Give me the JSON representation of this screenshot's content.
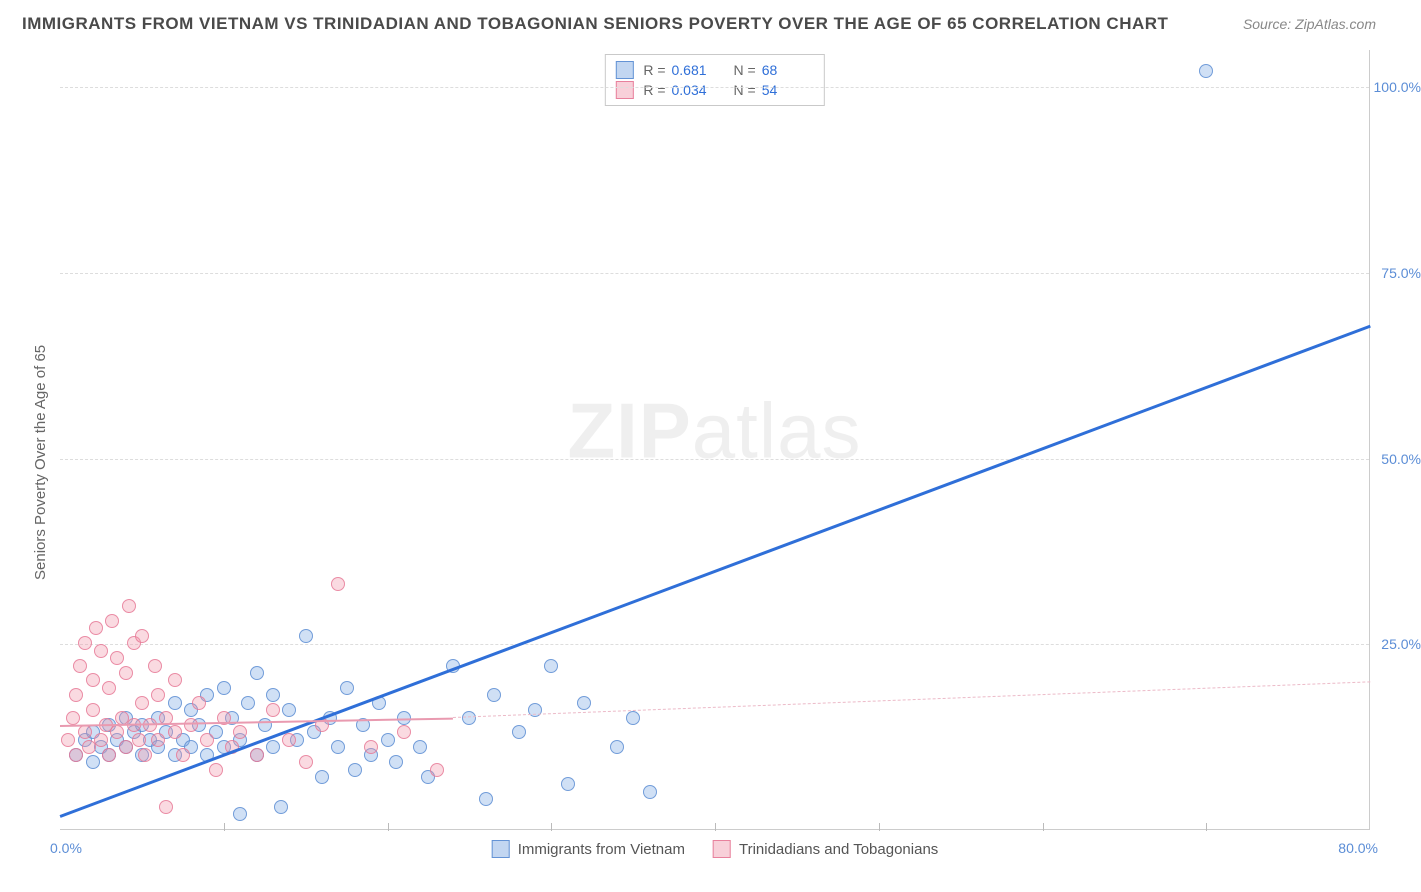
{
  "title": "IMMIGRANTS FROM VIETNAM VS TRINIDADIAN AND TOBAGONIAN SENIORS POVERTY OVER THE AGE OF 65 CORRELATION CHART",
  "source": "Source: ZipAtlas.com",
  "watermark_bold": "ZIP",
  "watermark_rest": "atlas",
  "chart": {
    "type": "scatter",
    "xlim": [
      0,
      80
    ],
    "ylim": [
      0,
      105
    ],
    "x_tick_step_minor": 10,
    "y_ticks": [
      25,
      50,
      75,
      100
    ],
    "y_tick_labels": [
      "25.0%",
      "50.0%",
      "75.0%",
      "100.0%"
    ],
    "x_label_min": "0.0%",
    "x_label_max": "80.0%",
    "y_axis_title": "Seniors Poverty Over the Age of 65",
    "background_color": "#ffffff",
    "grid_color": "#dddddd",
    "axis_color": "#cccccc",
    "label_color": "#5b8dd6",
    "series": [
      {
        "name": "Immigrants from Vietnam",
        "color_fill": "rgba(120,165,225,0.35)",
        "color_stroke": "rgba(90,140,210,0.8)",
        "class": "blue",
        "R": "0.681",
        "N": "68",
        "trend": {
          "x1": 0,
          "y1": 2,
          "x2": 80,
          "y2": 68,
          "color": "#2f6fd8",
          "style": "solid",
          "width": 2.5
        },
        "points": [
          [
            1,
            10
          ],
          [
            1.5,
            12
          ],
          [
            2,
            9
          ],
          [
            2,
            13
          ],
          [
            2.5,
            11
          ],
          [
            3,
            14
          ],
          [
            3,
            10
          ],
          [
            3.5,
            12
          ],
          [
            4,
            11
          ],
          [
            4,
            15
          ],
          [
            4.5,
            13
          ],
          [
            5,
            10
          ],
          [
            5,
            14
          ],
          [
            5.5,
            12
          ],
          [
            6,
            11
          ],
          [
            6,
            15
          ],
          [
            6.5,
            13
          ],
          [
            7,
            10
          ],
          [
            7,
            17
          ],
          [
            7.5,
            12
          ],
          [
            8,
            11
          ],
          [
            8,
            16
          ],
          [
            8.5,
            14
          ],
          [
            9,
            10
          ],
          [
            9,
            18
          ],
          [
            9.5,
            13
          ],
          [
            10,
            11
          ],
          [
            10,
            19
          ],
          [
            10.5,
            15
          ],
          [
            11,
            12
          ],
          [
            11,
            2
          ],
          [
            11.5,
            17
          ],
          [
            12,
            10
          ],
          [
            12,
            21
          ],
          [
            12.5,
            14
          ],
          [
            13,
            11
          ],
          [
            13,
            18
          ],
          [
            13.5,
            3
          ],
          [
            14,
            16
          ],
          [
            14.5,
            12
          ],
          [
            15,
            26
          ],
          [
            15.5,
            13
          ],
          [
            16,
            7
          ],
          [
            16.5,
            15
          ],
          [
            17,
            11
          ],
          [
            17.5,
            19
          ],
          [
            18,
            8
          ],
          [
            18.5,
            14
          ],
          [
            19,
            10
          ],
          [
            19.5,
            17
          ],
          [
            20,
            12
          ],
          [
            20.5,
            9
          ],
          [
            21,
            15
          ],
          [
            22,
            11
          ],
          [
            22.5,
            7
          ],
          [
            24,
            22
          ],
          [
            25,
            15
          ],
          [
            26,
            4
          ],
          [
            26.5,
            18
          ],
          [
            28,
            13
          ],
          [
            29,
            16
          ],
          [
            30,
            22
          ],
          [
            31,
            6
          ],
          [
            32,
            17
          ],
          [
            34,
            11
          ],
          [
            35,
            15
          ],
          [
            36,
            5
          ],
          [
            70,
            102
          ]
        ]
      },
      {
        "name": "Trinidadians and Tobagonians",
        "color_fill": "rgba(240,150,170,0.35)",
        "color_stroke": "rgba(230,120,150,0.8)",
        "class": "pink",
        "R": "0.034",
        "N": "54",
        "trend_solid": {
          "x1": 0,
          "y1": 14.2,
          "x2": 24,
          "y2": 15.2,
          "color": "#e99ab0",
          "style": "solid",
          "width": 2
        },
        "trend_dash": {
          "x1": 24,
          "y1": 15.2,
          "x2": 80,
          "y2": 20,
          "color": "#ecbac8",
          "style": "dashed",
          "width": 1.5
        },
        "points": [
          [
            0.5,
            12
          ],
          [
            0.8,
            15
          ],
          [
            1,
            10
          ],
          [
            1,
            18
          ],
          [
            1.2,
            22
          ],
          [
            1.5,
            13
          ],
          [
            1.5,
            25
          ],
          [
            1.8,
            11
          ],
          [
            2,
            16
          ],
          [
            2,
            20
          ],
          [
            2.2,
            27
          ],
          [
            2.5,
            12
          ],
          [
            2.5,
            24
          ],
          [
            2.8,
            14
          ],
          [
            3,
            10
          ],
          [
            3,
            19
          ],
          [
            3.2,
            28
          ],
          [
            3.5,
            13
          ],
          [
            3.5,
            23
          ],
          [
            3.8,
            15
          ],
          [
            4,
            11
          ],
          [
            4,
            21
          ],
          [
            4.2,
            30
          ],
          [
            4.5,
            14
          ],
          [
            4.5,
            25
          ],
          [
            4.8,
            12
          ],
          [
            5,
            17
          ],
          [
            5,
            26
          ],
          [
            5.2,
            10
          ],
          [
            5.5,
            14
          ],
          [
            5.8,
            22
          ],
          [
            6,
            12
          ],
          [
            6,
            18
          ],
          [
            6.5,
            15
          ],
          [
            6.5,
            3
          ],
          [
            7,
            13
          ],
          [
            7,
            20
          ],
          [
            7.5,
            10
          ],
          [
            8,
            14
          ],
          [
            8.5,
            17
          ],
          [
            9,
            12
          ],
          [
            9.5,
            8
          ],
          [
            10,
            15
          ],
          [
            10.5,
            11
          ],
          [
            11,
            13
          ],
          [
            12,
            10
          ],
          [
            13,
            16
          ],
          [
            14,
            12
          ],
          [
            15,
            9
          ],
          [
            16,
            14
          ],
          [
            17,
            33
          ],
          [
            19,
            11
          ],
          [
            21,
            13
          ],
          [
            23,
            8
          ]
        ]
      }
    ],
    "legend_top": {
      "rows": [
        {
          "swatch": "blue",
          "r_label": "R =",
          "r_val": "0.681",
          "n_label": "N =",
          "n_val": "68"
        },
        {
          "swatch": "pink",
          "r_label": "R =",
          "r_val": "0.034",
          "n_label": "N =",
          "n_val": "54"
        }
      ]
    },
    "legend_bottom": [
      {
        "swatch": "blue",
        "label": "Immigrants from Vietnam"
      },
      {
        "swatch": "pink",
        "label": "Trinidadians and Tobagonians"
      }
    ]
  }
}
